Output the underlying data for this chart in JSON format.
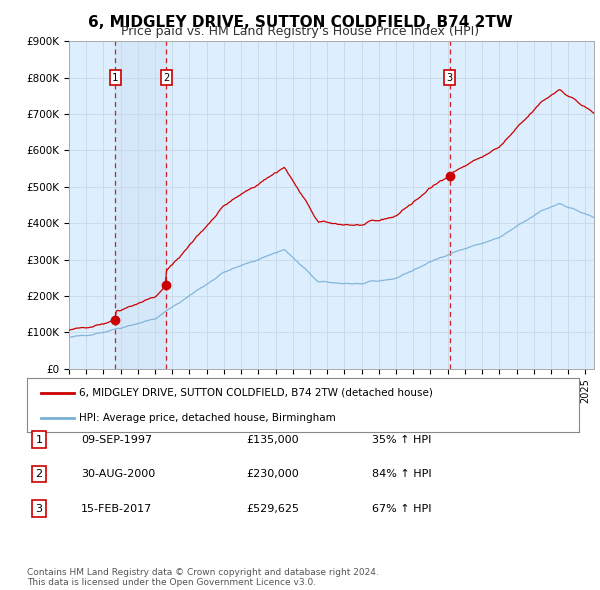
{
  "title": "6, MIDGLEY DRIVE, SUTTON COLDFIELD, B74 2TW",
  "subtitle": "Price paid vs. HM Land Registry's House Price Index (HPI)",
  "ylim": [
    0,
    900000
  ],
  "yticks": [
    0,
    100000,
    200000,
    300000,
    400000,
    500000,
    600000,
    700000,
    800000,
    900000
  ],
  "ytick_labels": [
    "£0",
    "£100K",
    "£200K",
    "£300K",
    "£400K",
    "£500K",
    "£600K",
    "£700K",
    "£800K",
    "£900K"
  ],
  "sale_dates_num": [
    1997.69,
    2000.66,
    2017.12
  ],
  "sale_prices": [
    135000,
    230000,
    529625
  ],
  "sale_labels": [
    "1",
    "2",
    "3"
  ],
  "red_line_color": "#cc0000",
  "blue_line_color": "#7ab0d4",
  "shade_color": "#ddeeff",
  "plot_bg_color": "#ddeeff",
  "grid_color": "#c8d8e8",
  "legend_line1": "6, MIDGLEY DRIVE, SUTTON COLDFIELD, B74 2TW (detached house)",
  "legend_line2": "HPI: Average price, detached house, Birmingham",
  "table_entries": [
    {
      "num": "1",
      "date": "09-SEP-1997",
      "price": "£135,000",
      "hpi": "35% ↑ HPI"
    },
    {
      "num": "2",
      "date": "30-AUG-2000",
      "price": "£230,000",
      "hpi": "84% ↑ HPI"
    },
    {
      "num": "3",
      "date": "15-FEB-2017",
      "price": "£529,625",
      "hpi": "67% ↑ HPI"
    }
  ],
  "footer": "Contains HM Land Registry data © Crown copyright and database right 2024.\nThis data is licensed under the Open Government Licence v3.0.",
  "title_fontsize": 11,
  "subtitle_fontsize": 9
}
